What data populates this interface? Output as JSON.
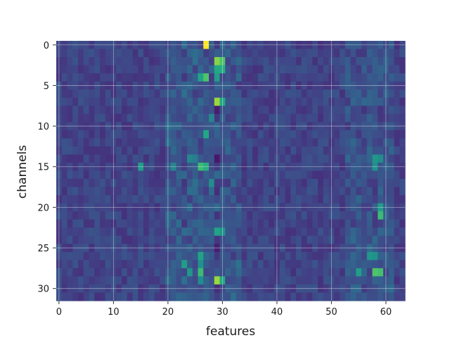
{
  "chart_data": {
    "type": "heatmap",
    "title": "",
    "xlabel": "features",
    "ylabel": "channels",
    "n_features": 64,
    "n_channels": 32,
    "xlim": [
      -0.5,
      63.5
    ],
    "ylim": [
      31.5,
      -0.5
    ],
    "xticks": [
      0,
      10,
      20,
      30,
      40,
      50,
      60
    ],
    "xtick_labels": [
      "0",
      "10",
      "20",
      "30",
      "40",
      "50",
      "60"
    ],
    "yticks": [
      0,
      5,
      10,
      15,
      20,
      25,
      30
    ],
    "ytick_labels": [
      "0",
      "5",
      "10",
      "15",
      "20",
      "25",
      "30"
    ],
    "grid": true,
    "colormap": "viridis",
    "value_range": [
      0,
      1
    ],
    "highlights": [
      {
        "channel": 0,
        "feature": 27,
        "value": 1.0
      },
      {
        "channel": 2,
        "feature": 29,
        "value": 0.82
      },
      {
        "channel": 2,
        "feature": 30,
        "value": 0.72
      },
      {
        "channel": 3,
        "feature": 29,
        "value": 0.6
      },
      {
        "channel": 3,
        "feature": 30,
        "value": 0.62
      },
      {
        "channel": 4,
        "feature": 26,
        "value": 0.58
      },
      {
        "channel": 4,
        "feature": 27,
        "value": 0.72
      },
      {
        "channel": 4,
        "feature": 29,
        "value": 0.55
      },
      {
        "channel": 7,
        "feature": 29,
        "value": 0.85
      },
      {
        "channel": 7,
        "feature": 30,
        "value": 0.6
      },
      {
        "channel": 9,
        "feature": 28,
        "value": 0.45
      },
      {
        "channel": 11,
        "feature": 27,
        "value": 0.6
      },
      {
        "channel": 14,
        "feature": 24,
        "value": 0.45
      },
      {
        "channel": 14,
        "feature": 25,
        "value": 0.42
      },
      {
        "channel": 15,
        "feature": 26,
        "value": 0.68
      },
      {
        "channel": 15,
        "feature": 27,
        "value": 0.62
      },
      {
        "channel": 15,
        "feature": 15,
        "value": 0.55
      },
      {
        "channel": 15,
        "feature": 21,
        "value": 0.45
      },
      {
        "channel": 14,
        "feature": 58,
        "value": 0.52
      },
      {
        "channel": 15,
        "feature": 58,
        "value": 0.5
      },
      {
        "channel": 14,
        "feature": 59,
        "value": 0.48
      },
      {
        "channel": 17,
        "feature": 28,
        "value": 0.48
      },
      {
        "channel": 20,
        "feature": 59,
        "value": 0.55
      },
      {
        "channel": 21,
        "feature": 59,
        "value": 0.68
      },
      {
        "channel": 23,
        "feature": 29,
        "value": 0.58
      },
      {
        "channel": 23,
        "feature": 30,
        "value": 0.52
      },
      {
        "channel": 26,
        "feature": 26,
        "value": 0.58
      },
      {
        "channel": 26,
        "feature": 57,
        "value": 0.52
      },
      {
        "channel": 26,
        "feature": 58,
        "value": 0.5
      },
      {
        "channel": 27,
        "feature": 23,
        "value": 0.55
      },
      {
        "channel": 27,
        "feature": 26,
        "value": 0.5
      },
      {
        "channel": 28,
        "feature": 24,
        "value": 0.52
      },
      {
        "channel": 28,
        "feature": 26,
        "value": 0.68
      },
      {
        "channel": 28,
        "feature": 58,
        "value": 0.72
      },
      {
        "channel": 28,
        "feature": 59,
        "value": 0.7
      },
      {
        "channel": 28,
        "feature": 55,
        "value": 0.55
      },
      {
        "channel": 29,
        "feature": 29,
        "value": 0.85
      },
      {
        "channel": 29,
        "feature": 30,
        "value": 0.6
      },
      {
        "channel": 29,
        "feature": 26,
        "value": 0.48
      }
    ]
  }
}
